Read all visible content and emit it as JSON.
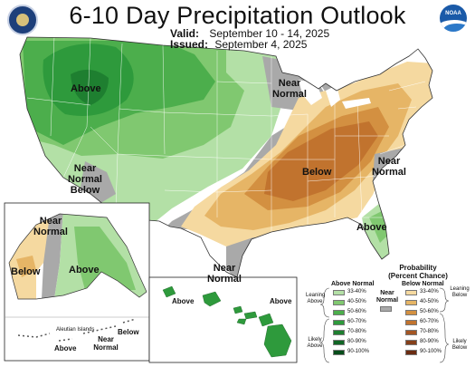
{
  "header": {
    "title": "6-10 Day Precipitation Outlook",
    "valid_label": "Valid:",
    "valid_value": "September 10 - 14, 2025",
    "issued_label": "Issued:",
    "issued_value": "September 4, 2025",
    "left_logo_icon": "commerce-seal-icon",
    "right_logo_icon": "noaa-logo-icon",
    "right_logo_text": "NOAA"
  },
  "map_labels": {
    "northwest_above": "Above",
    "northeast_near_normal": [
      "Near",
      "Normal"
    ],
    "southwest_near_normal_below": [
      "Near",
      "Normal",
      "Below"
    ],
    "central_below": "Below",
    "east_coast_near_normal": [
      "Near",
      "Normal"
    ],
    "southeast_above": "Above",
    "gulf_near_normal": [
      "Near",
      "Normal"
    ]
  },
  "alaska_labels": {
    "near_normal": [
      "Near",
      "Normal"
    ],
    "below": "Below",
    "above": "Above",
    "aleutian_title": "Aleutian Islands",
    "aleutian_above": "Above",
    "aleutian_near_normal": [
      "Near",
      "Normal"
    ],
    "aleutian_below": "Below"
  },
  "hawaii_labels": {
    "above_left": "Above",
    "above_right": "Above"
  },
  "legend": {
    "title": [
      "Probability",
      "(Percent Chance)"
    ],
    "above_normal_header": "Above Normal",
    "below_normal_header": "Below Normal",
    "near_normal_header": [
      "Near",
      "Normal"
    ],
    "leaning_above": [
      "Leaning",
      "Above"
    ],
    "likely_above": [
      "Likely",
      "Above"
    ],
    "leaning_below": [
      "Leaning",
      "Below"
    ],
    "likely_below": [
      "Likely",
      "Below"
    ],
    "ranges": [
      "33-40%",
      "40-50%",
      "50-60%",
      "60-70%",
      "70-80%",
      "80-90%",
      "90-100%"
    ],
    "above_colors": [
      "#b3e0a6",
      "#80c870",
      "#4cae4c",
      "#2e9a3c",
      "#1e7f30",
      "#116625",
      "#074d1a"
    ],
    "below_colors": [
      "#f5d9a0",
      "#e6b566",
      "#d39041",
      "#c1732e",
      "#a45624",
      "#85401a",
      "#6b2c12"
    ],
    "near_color": "#a9a9a9"
  }
}
